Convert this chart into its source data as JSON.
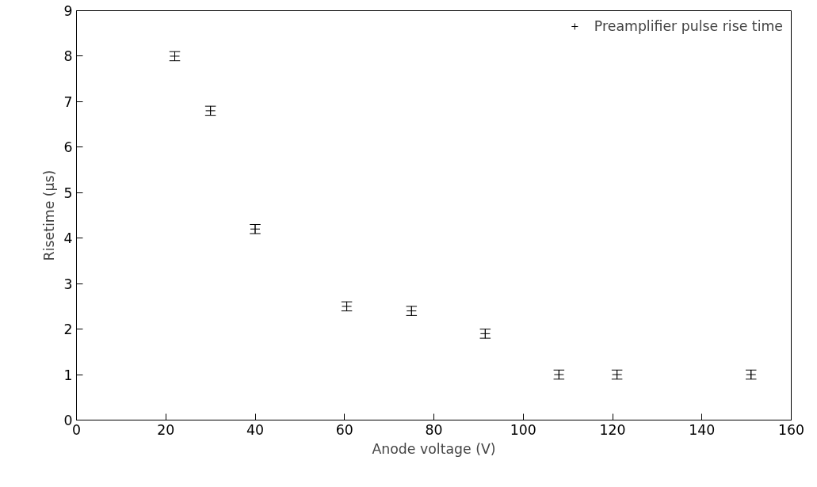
{
  "chart_data": {
    "type": "scatter",
    "xlabel": "Anode voltage (V)",
    "ylabel": "Risetime (µs)",
    "x": [
      22,
      30,
      40,
      60.5,
      75,
      91.5,
      108,
      121,
      151
    ],
    "series": [
      {
        "name": "Preamplifier pulse rise time",
        "color": "#000000",
        "values": [
          8.0,
          6.8,
          4.2,
          2.5,
          2.4,
          1.9,
          1.0,
          1.0,
          1.0
        ],
        "errors": [
          0.1,
          0.1,
          0.1,
          0.1,
          0.1,
          0.1,
          0.1,
          0.1,
          0.1
        ]
      }
    ],
    "marker": "cross",
    "xlim": [
      0,
      160
    ],
    "ylim": [
      0,
      9
    ],
    "xticks": [
      0,
      20,
      40,
      60,
      80,
      100,
      120,
      140,
      160
    ],
    "yticks": [
      0,
      1,
      2,
      3,
      4,
      5,
      6,
      7,
      8,
      9
    ],
    "grid": false,
    "legend": "top right"
  }
}
